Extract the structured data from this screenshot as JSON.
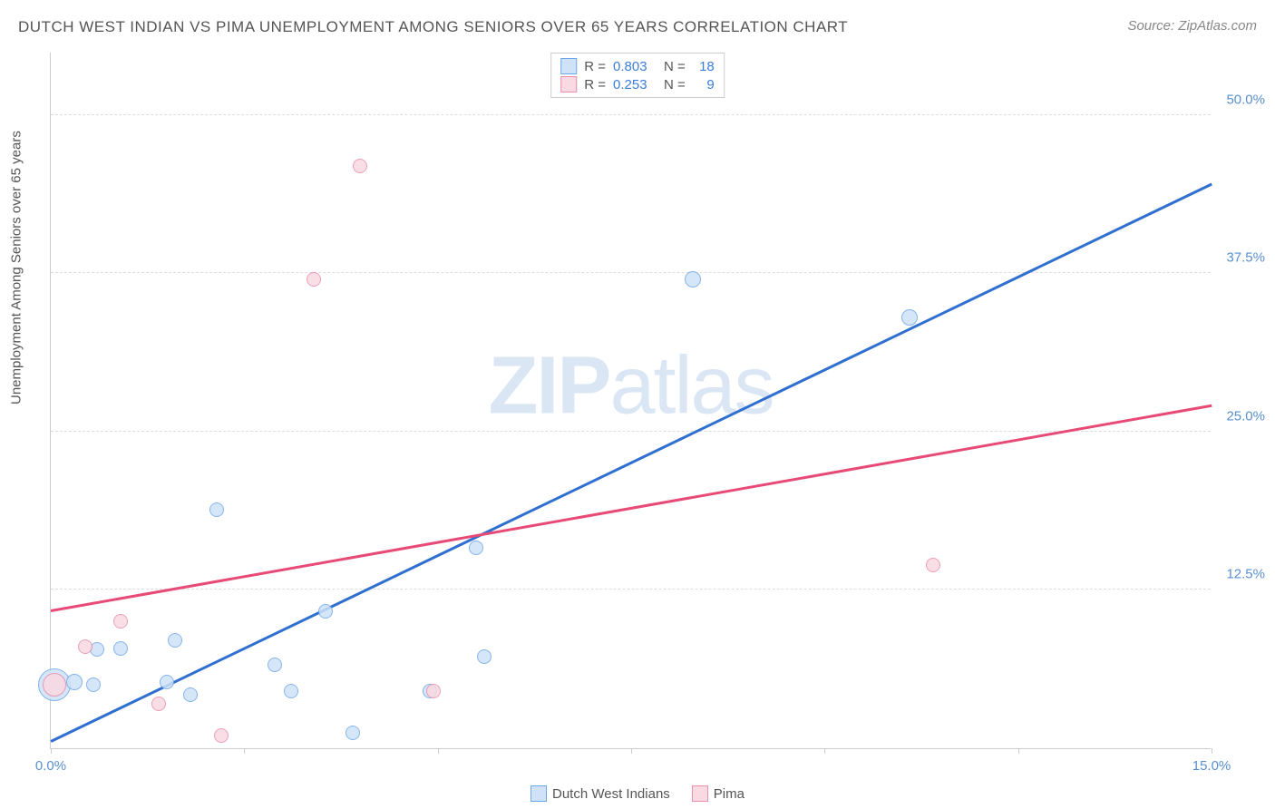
{
  "title": "DUTCH WEST INDIAN VS PIMA UNEMPLOYMENT AMONG SENIORS OVER 65 YEARS CORRELATION CHART",
  "source": "Source: ZipAtlas.com",
  "ylabel": "Unemployment Among Seniors over 65 years",
  "watermark_bold": "ZIP",
  "watermark_light": "atlas",
  "chart": {
    "type": "scatter",
    "xlim": [
      0,
      15
    ],
    "ylim": [
      0,
      55
    ],
    "x_ticks": [
      0,
      2.5,
      5,
      7.5,
      10,
      12.5,
      15
    ],
    "x_tick_labels": [
      "0.0%",
      "",
      "",
      "",
      "",
      "",
      "15.0%"
    ],
    "y_ticks": [
      12.5,
      25.0,
      37.5,
      50.0
    ],
    "y_tick_labels": [
      "12.5%",
      "25.0%",
      "37.5%",
      "50.0%"
    ],
    "background_color": "#ffffff",
    "grid_color": "#dddddd",
    "axis_color": "#cccccc",
    "xlabel_color": "#5a8fcf",
    "ylabel_color": "#555555",
    "title_color": "#555555"
  },
  "series": [
    {
      "name": "Dutch West Indians",
      "color_fill": "#cfe2f8",
      "color_stroke": "#6fa8e8",
      "trend_color": "#2f6fd0",
      "R": "0.803",
      "N": "18",
      "trend": {
        "x1": 0,
        "y1": 0.5,
        "x2": 15,
        "y2": 44.5
      },
      "points": [
        {
          "x": 0.05,
          "y": 5.0,
          "r": 18
        },
        {
          "x": 0.3,
          "y": 5.2,
          "r": 9
        },
        {
          "x": 0.6,
          "y": 7.8,
          "r": 8
        },
        {
          "x": 0.9,
          "y": 7.9,
          "r": 8
        },
        {
          "x": 0.55,
          "y": 5.0,
          "r": 8
        },
        {
          "x": 1.5,
          "y": 5.2,
          "r": 8
        },
        {
          "x": 1.6,
          "y": 8.5,
          "r": 8
        },
        {
          "x": 1.8,
          "y": 4.2,
          "r": 8
        },
        {
          "x": 2.15,
          "y": 18.8,
          "r": 8
        },
        {
          "x": 2.9,
          "y": 6.6,
          "r": 8
        },
        {
          "x": 3.1,
          "y": 4.5,
          "r": 8
        },
        {
          "x": 3.55,
          "y": 10.8,
          "r": 8
        },
        {
          "x": 3.9,
          "y": 1.2,
          "r": 8
        },
        {
          "x": 4.9,
          "y": 4.5,
          "r": 8
        },
        {
          "x": 5.5,
          "y": 15.8,
          "r": 8
        },
        {
          "x": 5.6,
          "y": 7.2,
          "r": 8
        },
        {
          "x": 8.3,
          "y": 37.0,
          "r": 9
        },
        {
          "x": 11.1,
          "y": 34.0,
          "r": 9
        }
      ]
    },
    {
      "name": "Pima",
      "color_fill": "#f9d9e2",
      "color_stroke": "#e98fab",
      "trend_color": "#e74a77",
      "R": "0.253",
      "N": "9",
      "trend": {
        "x1": 0,
        "y1": 10.8,
        "x2": 15,
        "y2": 27.0
      },
      "points": [
        {
          "x": 0.05,
          "y": 5.0,
          "r": 13
        },
        {
          "x": 0.45,
          "y": 8.0,
          "r": 8
        },
        {
          "x": 0.9,
          "y": 10.0,
          "r": 8
        },
        {
          "x": 1.4,
          "y": 3.5,
          "r": 8
        },
        {
          "x": 2.2,
          "y": 1.0,
          "r": 8
        },
        {
          "x": 3.4,
          "y": 37.0,
          "r": 8
        },
        {
          "x": 4.0,
          "y": 46.0,
          "r": 8
        },
        {
          "x": 4.95,
          "y": 4.5,
          "r": 8
        },
        {
          "x": 11.4,
          "y": 14.5,
          "r": 8
        }
      ]
    }
  ],
  "legend_labels": {
    "r_label": "R =",
    "n_label": "N ="
  }
}
